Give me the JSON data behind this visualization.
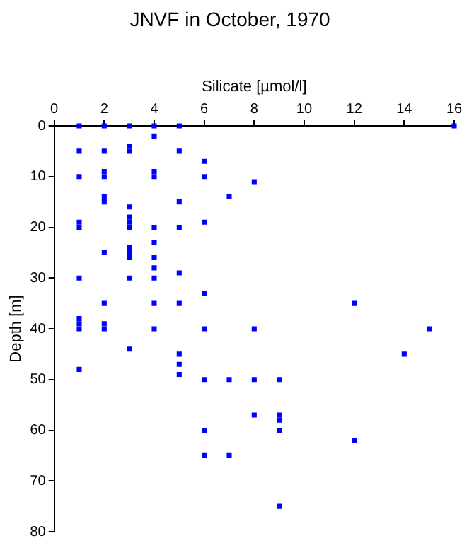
{
  "chart_data": {
    "type": "scatter",
    "title": "JNVF in October, 1970",
    "xlabel": "Silicate [µmol/l]",
    "ylabel": "Depth [m]",
    "x": [
      1,
      2,
      3,
      4,
      5,
      16,
      4,
      3,
      1,
      2,
      3,
      5,
      6,
      2,
      4,
      1,
      2,
      4,
      6,
      8,
      7,
      2,
      2,
      5,
      3,
      3,
      1,
      3,
      6,
      1,
      3,
      4,
      5,
      4,
      3,
      2,
      3,
      3,
      4,
      4,
      5,
      1,
      3,
      4,
      6,
      2,
      4,
      5,
      12,
      1,
      1,
      1,
      2,
      2,
      4,
      6,
      8,
      15,
      3,
      14,
      1,
      5,
      5,
      5,
      6,
      7,
      8,
      9,
      8,
      9,
      9,
      9,
      12,
      6,
      6,
      7,
      9
    ],
    "series": [
      {
        "color": "#0000ff",
        "values": [
          0,
          0,
          0,
          0,
          0,
          0,
          2,
          4,
          5,
          5,
          5,
          5,
          7,
          9,
          9,
          10,
          10,
          10,
          10,
          11,
          14,
          14,
          15,
          15,
          16,
          18,
          19,
          19,
          19,
          20,
          20,
          20,
          20,
          23,
          24,
          25,
          25,
          26,
          26,
          28,
          29,
          30,
          30,
          30,
          33,
          35,
          35,
          35,
          35,
          38,
          39,
          40,
          39,
          40,
          40,
          40,
          40,
          40,
          44,
          45,
          48,
          45,
          47,
          49,
          50,
          50,
          50,
          50,
          57,
          57,
          58,
          60,
          62,
          60,
          65,
          65,
          75
        ]
      }
    ],
    "xlim": [
      0,
      16
    ],
    "xticks": [
      0,
      2,
      4,
      6,
      8,
      10,
      12,
      14,
      16
    ],
    "ylim": [
      80,
      0
    ],
    "yticks": [
      0,
      10,
      20,
      30,
      40,
      50,
      60,
      70,
      80
    ],
    "grid": false,
    "legend": false,
    "marker": "square"
  }
}
